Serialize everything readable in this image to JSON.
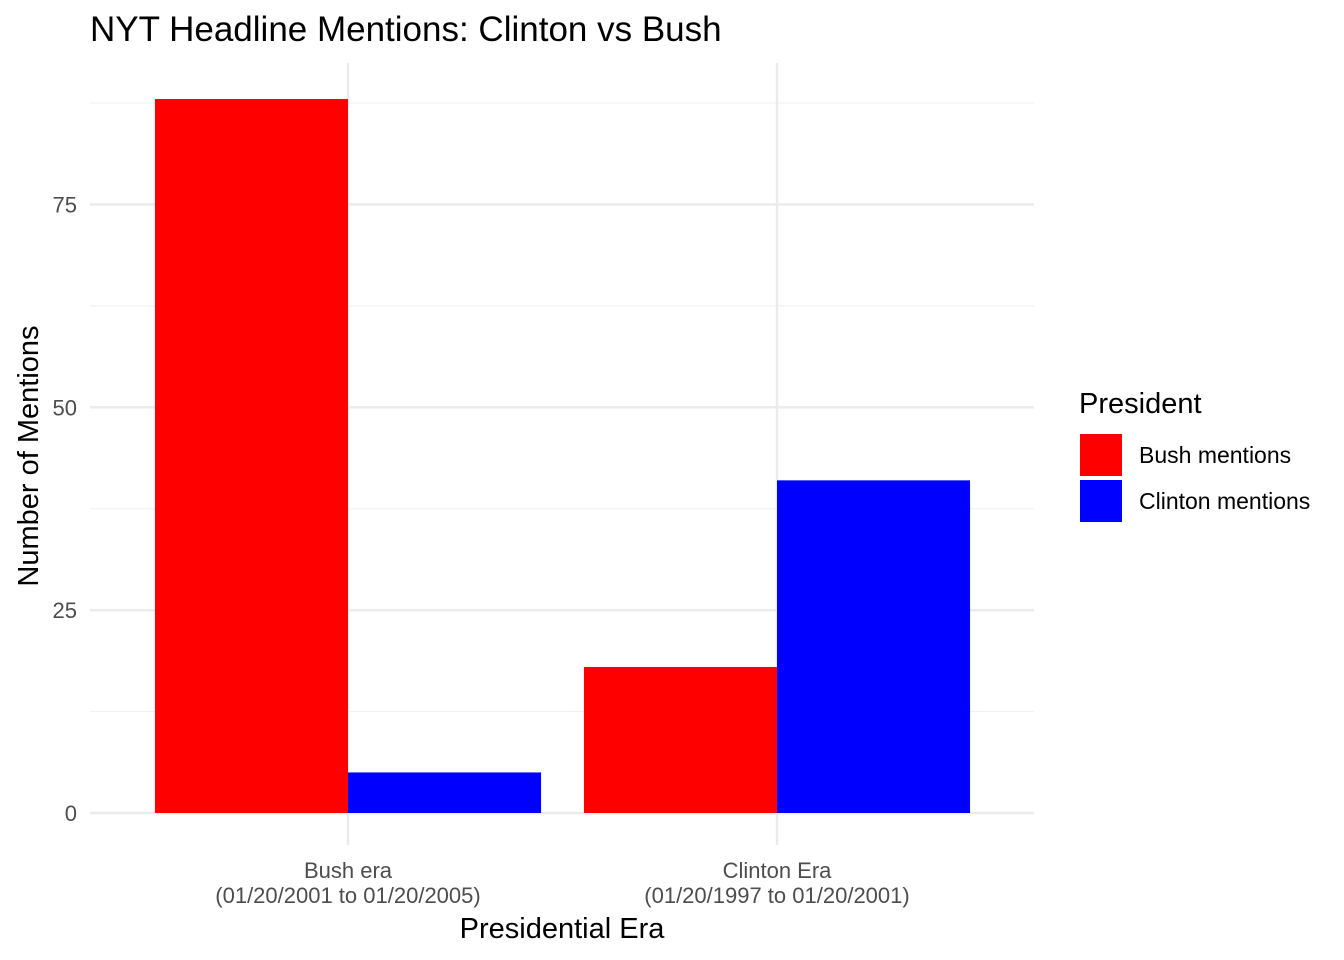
{
  "chart_data": {
    "type": "bar",
    "title": "NYT Headline Mentions: Clinton vs Bush",
    "xlabel": "Presidential Era",
    "ylabel": "Number of Mentions",
    "categories": [
      [
        "Bush era",
        "(01/20/2001 to 01/20/2005)"
      ],
      [
        "Clinton Era",
        "(01/20/1997 to 01/20/2001)"
      ]
    ],
    "series": [
      {
        "name": "Bush mentions",
        "color": "#ff0000",
        "values": [
          88,
          18
        ]
      },
      {
        "name": "Clinton mentions",
        "color": "#0000ff",
        "values": [
          5,
          41
        ]
      }
    ],
    "ylim": [
      0,
      92
    ],
    "yticks": [
      0,
      25,
      50,
      75
    ],
    "yminor": [
      12.5,
      37.5,
      62.5,
      87.5
    ],
    "grid": true,
    "legend": {
      "title": "President",
      "placement": "right"
    }
  }
}
